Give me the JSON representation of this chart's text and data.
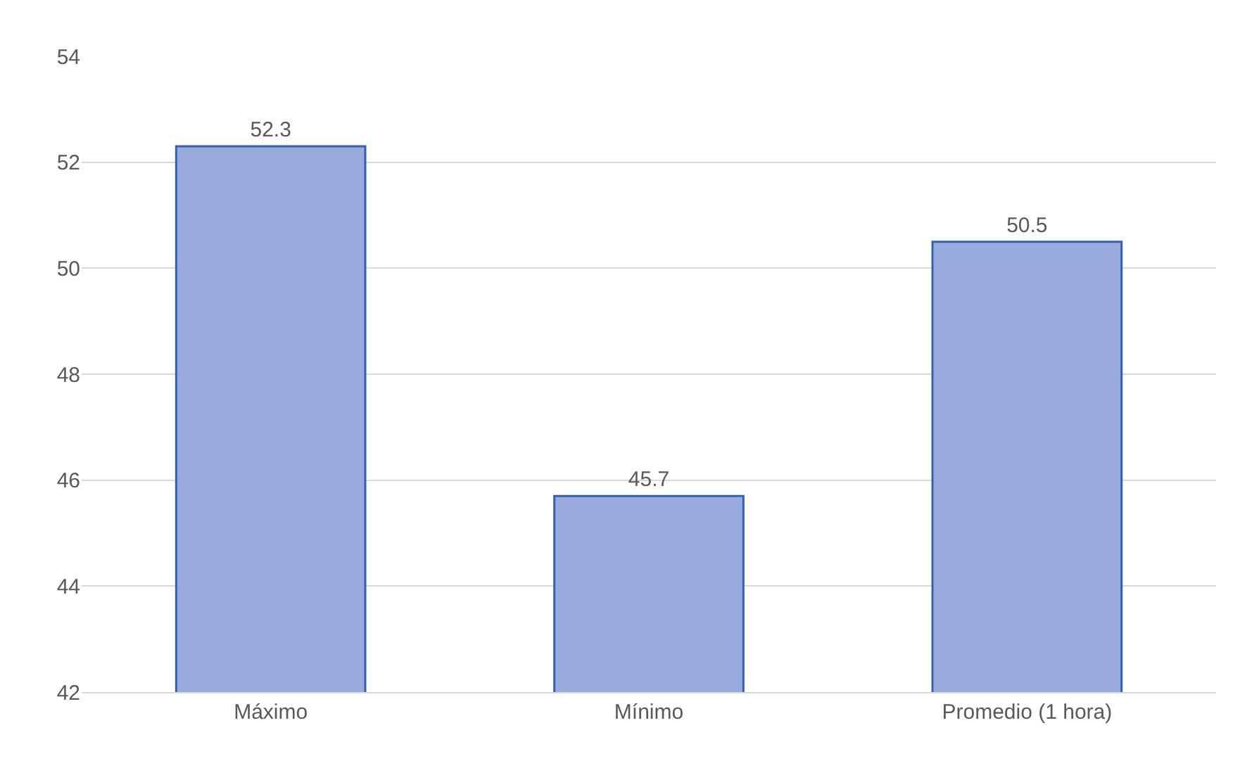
{
  "chart_data": {
    "type": "bar",
    "categories": [
      "Máximo",
      "Mínimo",
      "Promedio (1 hora)"
    ],
    "values": [
      52.3,
      45.7,
      50.5
    ],
    "color": "#98abdc",
    "ylim": [
      42,
      54
    ],
    "yticks": [
      42,
      44,
      46,
      48,
      50,
      52,
      54
    ],
    "grid": "y",
    "data_labels": true,
    "legend": false
  }
}
